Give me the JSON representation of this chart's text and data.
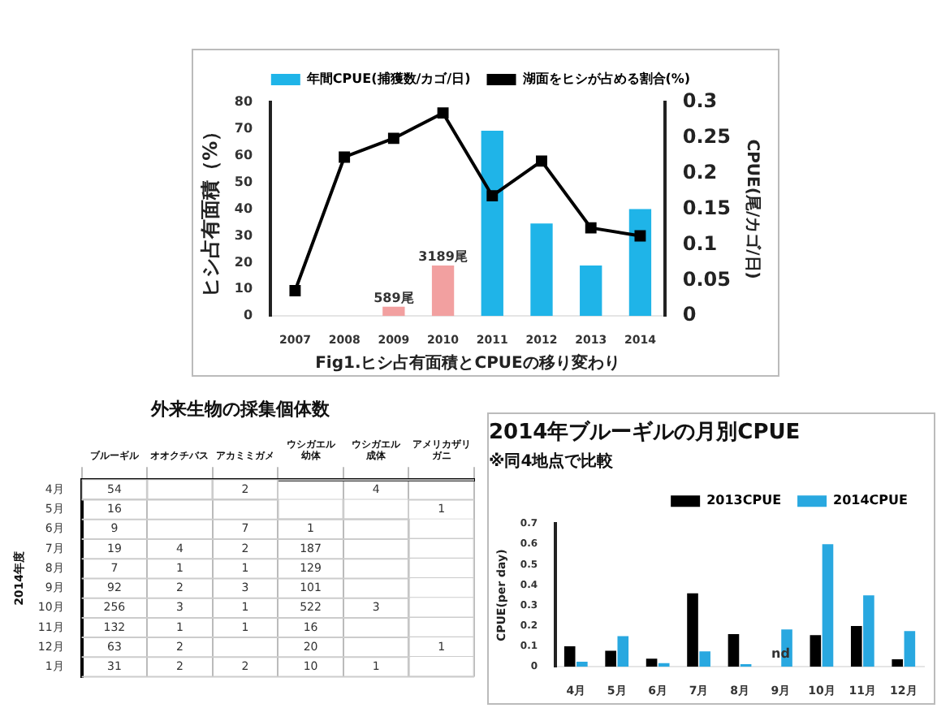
{
  "chart_data": [
    {
      "type": "bar",
      "xlabel": "Fig1.ヒシ占有面積とCPUEの移り変わり",
      "ylabel": "ヒシ占有面積（%）",
      "y2label": "CPUE(尾/カゴ/日)",
      "categories": [
        "2007",
        "2008",
        "2009",
        "2010",
        "2011",
        "2012",
        "2013",
        "2014"
      ],
      "series": [
        {
          "name": "年間CPUE(捕獲数/カゴ/日)",
          "type": "bar",
          "axis": "y2",
          "color": "#1fb4e8",
          "colors": [
            "#1fb4e8",
            "#1fb4e8",
            "#f2a0a0",
            "#f2a0a0",
            "#1fb4e8",
            "#1fb4e8",
            "#1fb4e8",
            "#1fb4e8"
          ],
          "values": [
            null,
            null,
            0.013,
            0.071,
            0.26,
            0.13,
            0.071,
            0.15
          ]
        },
        {
          "name": "湖面をヒシが占める割合(%)",
          "type": "line",
          "color": "#000000",
          "values": [
            9.5,
            59.5,
            66.5,
            76,
            45,
            58,
            33,
            30
          ]
        }
      ],
      "ylim": [
        0,
        80
      ],
      "yticks": [
        0,
        10,
        20,
        30,
        40,
        50,
        60,
        70,
        80
      ],
      "y2lim": [
        0,
        0.3
      ],
      "y2ticks": [
        0,
        0.05,
        0.1,
        0.15,
        0.2,
        0.25,
        0.3
      ],
      "marker": "square",
      "legend": "top",
      "annotations": [
        {
          "text": "589尾",
          "x": "2009",
          "y": 3.5
        },
        {
          "text": "3189尾",
          "x": "2010",
          "y": 19
        }
      ]
    },
    {
      "type": "heatmap",
      "title": "外来生物の採集個体数",
      "ylabel": "2014年度",
      "categories": [
        "ブルーギル",
        "オオクチバス",
        "アカミミガメ",
        "ウシガエル幼体",
        "ウシガエル成体",
        "アメリカザリガニ"
      ],
      "data_labels": true,
      "y_categories": [
        "4月",
        "5月",
        "6月",
        "7月",
        "8月",
        "9月",
        "10月",
        "11月",
        "12月",
        "1月"
      ],
      "cells": [
        [
          54,
          null,
          2,
          null,
          4,
          null
        ],
        [
          16,
          null,
          null,
          null,
          null,
          1
        ],
        [
          9,
          null,
          7,
          1,
          null,
          null
        ],
        [
          19,
          4,
          2,
          187,
          null,
          null
        ],
        [
          7,
          1,
          1,
          129,
          null,
          null
        ],
        [
          92,
          2,
          3,
          101,
          null,
          null
        ],
        [
          256,
          3,
          1,
          522,
          3,
          null
        ],
        [
          132,
          1,
          1,
          16,
          null,
          null
        ],
        [
          63,
          2,
          null,
          20,
          null,
          1
        ],
        [
          31,
          2,
          2,
          10,
          1,
          null
        ]
      ]
    },
    {
      "type": "bar",
      "title": "2014年ブルーギルの月別CPUE",
      "subtitle": "※同4地点で比較",
      "ylabel": "CPUE(per day)",
      "categories": [
        "4月",
        "5月",
        "6月",
        "7月",
        "8月",
        "9月",
        "10月",
        "11月",
        "12月"
      ],
      "series": [
        {
          "name": "2013CPUE",
          "color": "#000000",
          "values": [
            0.1,
            0.078,
            0.04,
            0.36,
            0.16,
            null,
            0.155,
            0.2,
            0.037
          ]
        },
        {
          "name": "2014CPUE",
          "color": "#29a8e0",
          "values": [
            0.025,
            0.15,
            0.018,
            0.075,
            0.013,
            0.183,
            0.6,
            0.35,
            0.175
          ]
        }
      ],
      "ylim": [
        0,
        0.7
      ],
      "yticks": [
        0,
        0.1,
        0.2,
        0.3,
        0.4,
        0.5,
        0.6,
        0.7
      ],
      "legend": "top right",
      "annotations": [
        {
          "text": "nd",
          "x": "9月",
          "y": 0.02
        }
      ]
    }
  ]
}
